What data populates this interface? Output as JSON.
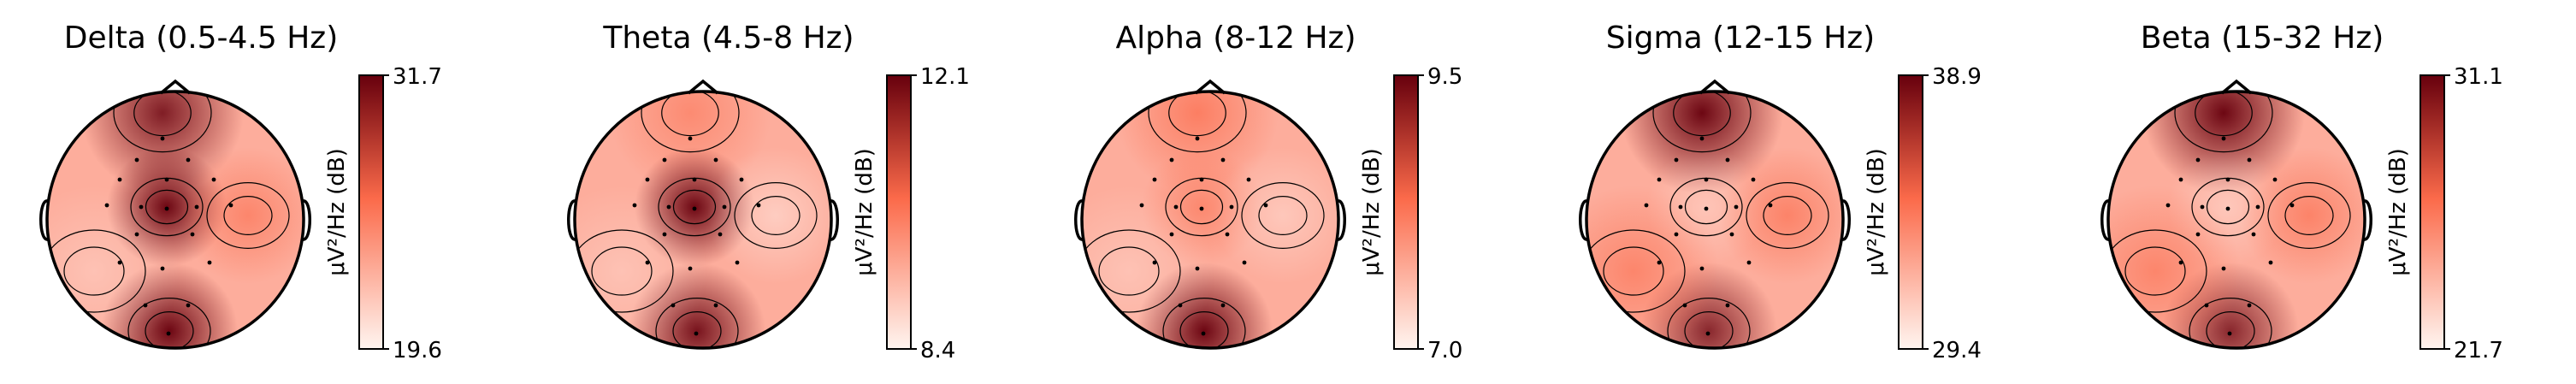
{
  "chart_data": [
    {
      "type": "heatmap",
      "title": "Delta (0.5-4.5 Hz)",
      "colorbar": {
        "label": "μV²/Hz (dB)",
        "min": 19.6,
        "max": 31.7,
        "colormap": "Reds"
      },
      "hotspots": [
        {
          "region": "frontal",
          "level": 0.78
        },
        {
          "region": "central",
          "level": 0.95
        },
        {
          "region": "occipital",
          "level": 0.95
        },
        {
          "region": "left-temporal",
          "level": 0.05
        },
        {
          "region": "right-temporal",
          "level": 0.45
        }
      ]
    },
    {
      "type": "heatmap",
      "title": "Theta (4.5-8 Hz)",
      "colorbar": {
        "label": "μV²/Hz (dB)",
        "min": 8.4,
        "max": 12.1,
        "colormap": "Reds"
      },
      "hotspots": [
        {
          "region": "frontal",
          "level": 0.35
        },
        {
          "region": "central",
          "level": 0.95
        },
        {
          "region": "occipital",
          "level": 0.85
        },
        {
          "region": "left-temporal",
          "level": 0.05
        },
        {
          "region": "right-temporal",
          "level": 0.25
        }
      ]
    },
    {
      "type": "heatmap",
      "title": "Alpha (8-12 Hz)",
      "colorbar": {
        "label": "μV²/Hz (dB)",
        "min": 7.0,
        "max": 9.5,
        "colormap": "Reds"
      },
      "hotspots": [
        {
          "region": "frontal",
          "level": 0.6
        },
        {
          "region": "central",
          "level": 0.4
        },
        {
          "region": "occipital",
          "level": 0.95
        },
        {
          "region": "left-temporal",
          "level": 0.05
        },
        {
          "region": "right-temporal",
          "level": 0.15
        }
      ]
    },
    {
      "type": "heatmap",
      "title": "Sigma (12-15 Hz)",
      "colorbar": {
        "label": "μV²/Hz (dB)",
        "min": 29.4,
        "max": 38.9,
        "colormap": "Reds"
      },
      "hotspots": [
        {
          "region": "frontal",
          "level": 0.95
        },
        {
          "region": "central",
          "level": 0.1
        },
        {
          "region": "occipital",
          "level": 0.7
        },
        {
          "region": "left-temporal",
          "level": 0.45
        },
        {
          "region": "right-temporal",
          "level": 0.5
        }
      ]
    },
    {
      "type": "heatmap",
      "title": "Beta (15-32 Hz)",
      "colorbar": {
        "label": "μV²/Hz (dB)",
        "min": 21.7,
        "max": 31.1,
        "colormap": "Reds"
      },
      "hotspots": [
        {
          "region": "frontal",
          "level": 0.95
        },
        {
          "region": "central",
          "level": 0.15
        },
        {
          "region": "occipital",
          "level": 0.7
        },
        {
          "region": "left-temporal",
          "level": 0.45
        },
        {
          "region": "right-temporal",
          "level": 0.5
        }
      ]
    }
  ],
  "colors": {
    "colormap_low": "#fff5f0",
    "colormap_mid": "#fb6a4a",
    "colormap_high": "#67000d",
    "outline": "#000000",
    "sensor_dots": "#000000"
  }
}
